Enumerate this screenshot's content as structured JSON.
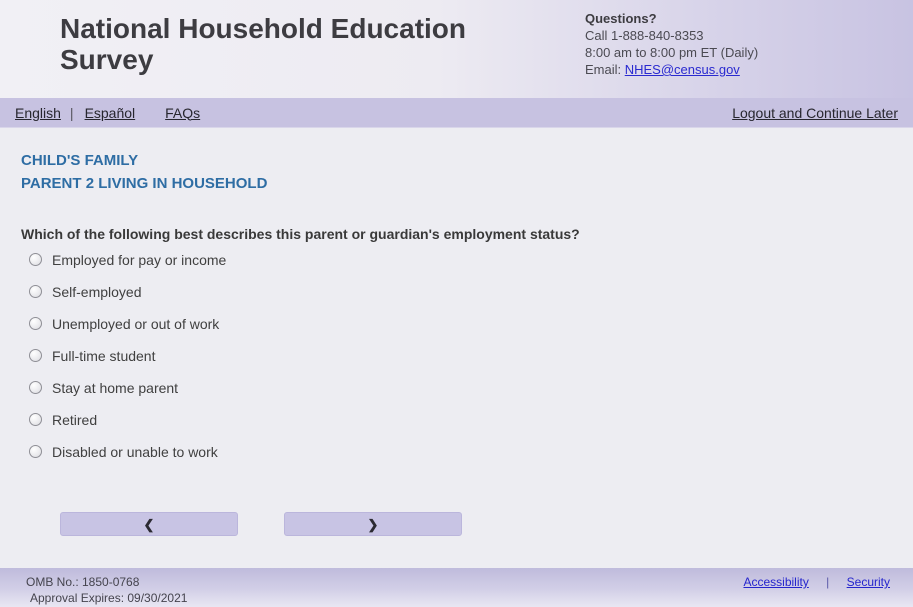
{
  "header": {
    "title": "National Household Education Survey",
    "contact": {
      "heading": "Questions?",
      "phone": "Call 1-888-840-8353",
      "hours": "8:00 am to 8:00 pm ET (Daily)",
      "email_label": "Email: ",
      "email_link": "NHES@census.gov"
    }
  },
  "navbar": {
    "links": [
      {
        "label": "English"
      },
      {
        "label": "Español"
      },
      {
        "label": "FAQs"
      }
    ],
    "separator": "|",
    "logout_label": "Logout and Continue Later"
  },
  "main": {
    "section_title_line1": "CHILD'S FAMILY",
    "section_title_line2": "PARENT 2 LIVING IN HOUSEHOLD",
    "question": "Which of the following best describes this parent or guardian's employment status?",
    "options": [
      {
        "label": "Employed for pay or income",
        "selected": false
      },
      {
        "label": "Self-employed",
        "selected": false
      },
      {
        "label": "Unemployed or out of work",
        "selected": false
      },
      {
        "label": "Full-time student",
        "selected": false
      },
      {
        "label": "Stay at home parent",
        "selected": false
      },
      {
        "label": "Retired",
        "selected": false
      },
      {
        "label": "Disabled or unable to work",
        "selected": false
      }
    ],
    "nav_buttons": {
      "back_icon": "❮",
      "next_icon": "❯"
    }
  },
  "footer": {
    "omb": "OMB No.: 1850-0768",
    "approval": "Approval Expires: 09/30/2021",
    "links": [
      {
        "label": "Accessibility"
      },
      {
        "label": "Security"
      }
    ],
    "separator": "|"
  },
  "colors": {
    "accent_lavender": "#c7c2e1",
    "heading_blue": "#2e6da4",
    "link_blue": "#2a2ad0",
    "footer_link_blue": "#2525cd",
    "title_charcoal": "#3d3c41"
  }
}
